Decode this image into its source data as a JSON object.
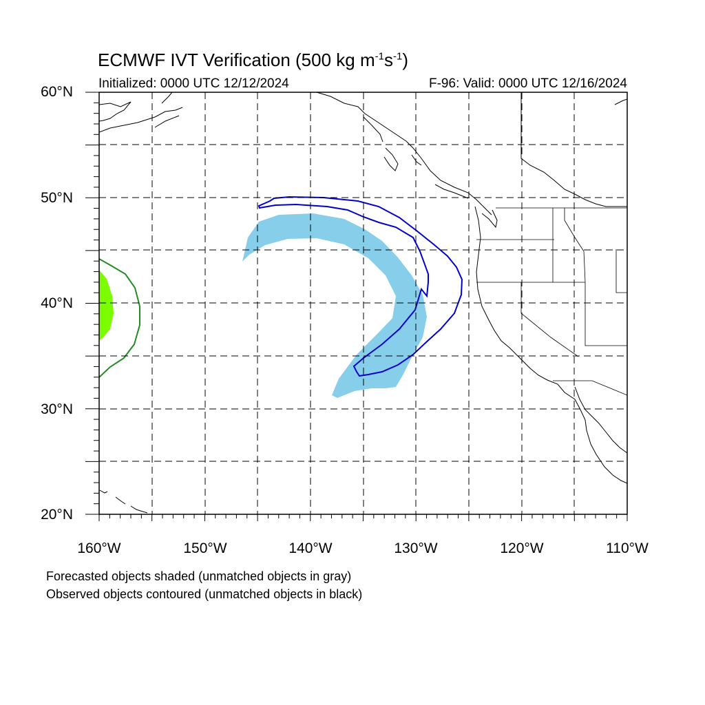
{
  "title": {
    "main": "ECMWF IVT Verification (500 kg m",
    "exp1": "-1",
    "mid": "s",
    "exp2": "-1",
    "end": ")"
  },
  "initialized": "Initialized: 0000 UTC 12/12/2024",
  "valid": "F-96: Valid: 0000 UTC 12/16/2024",
  "lat_labels": [
    "60°N",
    "50°N",
    "40°N",
    "30°N",
    "20°N"
  ],
  "lon_labels": [
    "160°W",
    "150°W",
    "140°W",
    "130°W",
    "120°W",
    "110°W"
  ],
  "legend": [
    "Forecasted objects shaded (unmatched objects in gray)",
    "Observed objects contoured (unmatched objects in black)"
  ],
  "colors": {
    "forecast_matched": "#87ceeb",
    "forecast_west": "#7cfc00",
    "observed_matched": "#0000cd",
    "observed_west": "#228b22",
    "grid": "#000000"
  }
}
